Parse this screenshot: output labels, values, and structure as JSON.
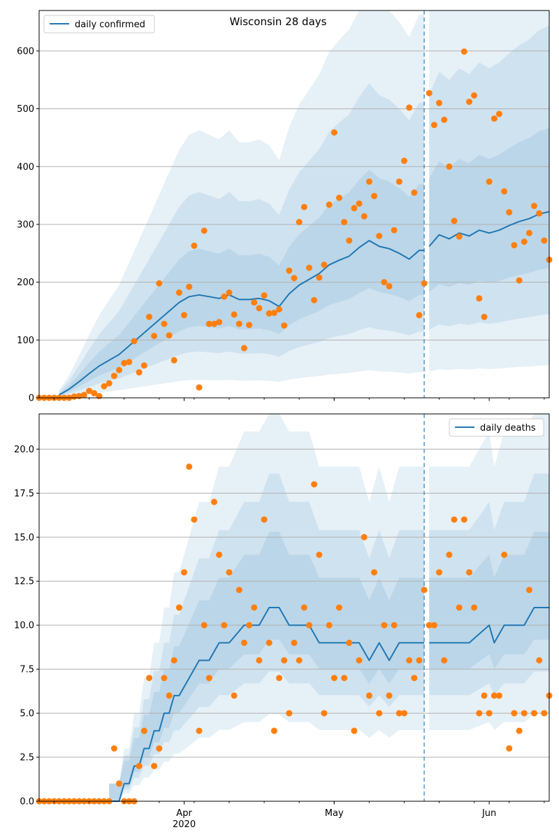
{
  "chart_data": [
    {
      "type": "line",
      "title": "Wisconsin 28 days",
      "ylim": [
        0,
        670
      ],
      "yticks": [
        0,
        100,
        200,
        300,
        400,
        500,
        600
      ],
      "ytick_labels": [
        "0",
        "100",
        "200",
        "300",
        "400",
        "500",
        "600"
      ],
      "grid": "horizontal",
      "legend": {
        "position": "top-left",
        "label": "daily confirmed"
      },
      "xlim": [
        "2020-03-03",
        "2020-06-13"
      ],
      "xticks": [
        {
          "date": "2020-04-01",
          "label": "Apr",
          "sublabel": "2020"
        },
        {
          "date": "2020-05-01",
          "label": "May",
          "sublabel": ""
        },
        {
          "date": "2020-06-01",
          "label": "Jun",
          "sublabel": ""
        }
      ],
      "vline_date": "2020-05-19",
      "colors": {
        "line": "#1f77b4",
        "points": "#ff7f0e",
        "band": "#1f77b4",
        "vline": "#1f77b4"
      },
      "forecast_start": "2020-05-20",
      "series": [
        {
          "name": "daily confirmed",
          "kind": "line",
          "x": [
            "2020-03-07",
            "2020-03-09",
            "2020-03-11",
            "2020-03-13",
            "2020-03-15",
            "2020-03-17",
            "2020-03-19",
            "2020-03-21",
            "2020-03-23",
            "2020-03-25",
            "2020-03-27",
            "2020-03-29",
            "2020-03-31",
            "2020-04-02",
            "2020-04-04",
            "2020-04-06",
            "2020-04-08",
            "2020-04-10",
            "2020-04-12",
            "2020-04-14",
            "2020-04-16",
            "2020-04-18",
            "2020-04-20",
            "2020-04-22",
            "2020-04-24",
            "2020-04-26",
            "2020-04-28",
            "2020-04-30",
            "2020-05-02",
            "2020-05-04",
            "2020-05-06",
            "2020-05-08",
            "2020-05-10",
            "2020-05-12",
            "2020-05-14",
            "2020-05-16",
            "2020-05-18",
            "2020-05-19"
          ],
          "y": [
            5,
            15,
            28,
            42,
            55,
            65,
            75,
            90,
            105,
            120,
            135,
            150,
            165,
            175,
            178,
            175,
            172,
            178,
            170,
            170,
            172,
            168,
            158,
            180,
            195,
            205,
            215,
            230,
            238,
            245,
            260,
            272,
            262,
            258,
            250,
            240,
            255,
            255
          ]
        },
        {
          "name": "forecast",
          "kind": "line",
          "x": [
            "2020-05-20",
            "2020-05-22",
            "2020-05-24",
            "2020-05-26",
            "2020-05-28",
            "2020-05-30",
            "2020-06-01",
            "2020-06-03",
            "2020-06-05",
            "2020-06-07",
            "2020-06-09",
            "2020-06-11",
            "2020-06-13"
          ],
          "y": [
            262,
            282,
            275,
            285,
            280,
            290,
            285,
            290,
            298,
            305,
            310,
            318,
            322
          ]
        },
        {
          "name": "observed",
          "kind": "scatter",
          "x": [
            "2020-03-03",
            "2020-03-04",
            "2020-03-05",
            "2020-03-06",
            "2020-03-07",
            "2020-03-08",
            "2020-03-09",
            "2020-03-10",
            "2020-03-11",
            "2020-03-12",
            "2020-03-13",
            "2020-03-14",
            "2020-03-15",
            "2020-03-16",
            "2020-03-17",
            "2020-03-18",
            "2020-03-19",
            "2020-03-20",
            "2020-03-21",
            "2020-03-22",
            "2020-03-23",
            "2020-03-24",
            "2020-03-25",
            "2020-03-26",
            "2020-03-27",
            "2020-03-28",
            "2020-03-29",
            "2020-03-30",
            "2020-03-31",
            "2020-04-01",
            "2020-04-02",
            "2020-04-03",
            "2020-04-04",
            "2020-04-05",
            "2020-04-06",
            "2020-04-07",
            "2020-04-08",
            "2020-04-09",
            "2020-04-10",
            "2020-04-11",
            "2020-04-12",
            "2020-04-13",
            "2020-04-14",
            "2020-04-15",
            "2020-04-16",
            "2020-04-17",
            "2020-04-18",
            "2020-04-19",
            "2020-04-20",
            "2020-04-21",
            "2020-04-22",
            "2020-04-23",
            "2020-04-24",
            "2020-04-25",
            "2020-04-26",
            "2020-04-27",
            "2020-04-28",
            "2020-04-29",
            "2020-04-30",
            "2020-05-01",
            "2020-05-02",
            "2020-05-03",
            "2020-05-04",
            "2020-05-05",
            "2020-05-06",
            "2020-05-07",
            "2020-05-08",
            "2020-05-09",
            "2020-05-10",
            "2020-05-11",
            "2020-05-12",
            "2020-05-13",
            "2020-05-14",
            "2020-05-15",
            "2020-05-16",
            "2020-05-17",
            "2020-05-18",
            "2020-05-19",
            "2020-05-20",
            "2020-05-21",
            "2020-05-22",
            "2020-05-23",
            "2020-05-24",
            "2020-05-25",
            "2020-05-26",
            "2020-05-27",
            "2020-05-28",
            "2020-05-29",
            "2020-05-30",
            "2020-05-31",
            "2020-06-01",
            "2020-06-02",
            "2020-06-03",
            "2020-06-04",
            "2020-06-05",
            "2020-06-06",
            "2020-06-07",
            "2020-06-08",
            "2020-06-09",
            "2020-06-10",
            "2020-06-11",
            "2020-06-12",
            "2020-06-13"
          ],
          "y": [
            0,
            0,
            0,
            0,
            0,
            0,
            0,
            2,
            3,
            5,
            12,
            8,
            3,
            20,
            25,
            38,
            48,
            60,
            62,
            98,
            44,
            56,
            140,
            107,
            198,
            128,
            108,
            65,
            182,
            143,
            192,
            263,
            18,
            289,
            128,
            128,
            131,
            175,
            182,
            144,
            128,
            86,
            126,
            165,
            155,
            177,
            146,
            147,
            153,
            125,
            220,
            207,
            304,
            330,
            225,
            169,
            208,
            230,
            334,
            459,
            346,
            304,
            272,
            328,
            336,
            314,
            374,
            349,
            280,
            200,
            193,
            290,
            374,
            410,
            502,
            355,
            143,
            198,
            527,
            472,
            510,
            481,
            400,
            306,
            279,
            599,
            512,
            523,
            172,
            140,
            374,
            483,
            491,
            357,
            321,
            264,
            203,
            270,
            285,
            332,
            319,
            272,
            239
          ]
        }
      ]
    },
    {
      "type": "line",
      "title": "",
      "ylim": [
        0,
        22
      ],
      "yticks": [
        0,
        2.5,
        5,
        7.5,
        10,
        12.5,
        15,
        17.5,
        20
      ],
      "ytick_labels": [
        "0.0",
        "2.5",
        "5.0",
        "7.5",
        "10.0",
        "12.5",
        "15.0",
        "17.5",
        "20.0"
      ],
      "grid": "horizontal",
      "legend": {
        "position": "top-right",
        "label": "daily deaths"
      },
      "xlim": [
        "2020-03-03",
        "2020-06-13"
      ],
      "xticks": [
        {
          "date": "2020-04-01",
          "label": "Apr",
          "sublabel": "2020"
        },
        {
          "date": "2020-05-01",
          "label": "May",
          "sublabel": ""
        },
        {
          "date": "2020-06-01",
          "label": "Jun",
          "sublabel": ""
        }
      ],
      "vline_date": "2020-05-19",
      "colors": {
        "line": "#1f77b4",
        "points": "#ff7f0e",
        "band": "#1f77b4",
        "vline": "#1f77b4"
      },
      "forecast_start": "2020-05-20",
      "series": [
        {
          "name": "daily deaths",
          "kind": "line",
          "x": [
            "2020-03-17",
            "2020-03-18",
            "2020-03-19",
            "2020-03-20",
            "2020-03-21",
            "2020-03-22",
            "2020-03-23",
            "2020-03-24",
            "2020-03-25",
            "2020-03-26",
            "2020-03-27",
            "2020-03-28",
            "2020-03-29",
            "2020-03-30",
            "2020-03-31",
            "2020-04-02",
            "2020-04-04",
            "2020-04-06",
            "2020-04-08",
            "2020-04-10",
            "2020-04-13",
            "2020-04-16",
            "2020-04-18",
            "2020-04-20",
            "2020-04-22",
            "2020-04-24",
            "2020-04-26",
            "2020-04-28",
            "2020-04-30",
            "2020-05-02",
            "2020-05-04",
            "2020-05-06",
            "2020-05-08",
            "2020-05-10",
            "2020-05-12",
            "2020-05-14",
            "2020-05-16",
            "2020-05-18",
            "2020-05-19"
          ],
          "y": [
            0,
            0,
            0,
            1,
            1,
            2,
            2,
            3,
            3,
            4,
            4,
            5,
            5,
            6,
            6,
            7,
            8,
            8,
            9,
            9,
            10,
            10,
            11,
            11,
            10,
            10,
            10,
            9,
            9,
            9,
            9,
            9,
            8,
            9,
            8,
            9,
            9,
            9,
            9
          ]
        },
        {
          "name": "forecast",
          "kind": "line",
          "x": [
            "2020-05-20",
            "2020-05-22",
            "2020-05-24",
            "2020-05-26",
            "2020-05-28",
            "2020-05-30",
            "2020-06-01",
            "2020-06-02",
            "2020-06-04",
            "2020-06-06",
            "2020-06-08",
            "2020-06-10",
            "2020-06-13"
          ],
          "y": [
            9,
            9,
            9,
            9,
            9,
            9.5,
            10,
            9,
            10,
            10,
            10,
            11,
            11
          ]
        },
        {
          "name": "observed",
          "kind": "scatter",
          "x": [
            "2020-03-03",
            "2020-03-04",
            "2020-03-05",
            "2020-03-06",
            "2020-03-07",
            "2020-03-08",
            "2020-03-09",
            "2020-03-10",
            "2020-03-11",
            "2020-03-12",
            "2020-03-13",
            "2020-03-14",
            "2020-03-15",
            "2020-03-16",
            "2020-03-17",
            "2020-03-18",
            "2020-03-19",
            "2020-03-20",
            "2020-03-21",
            "2020-03-22",
            "2020-03-23",
            "2020-03-24",
            "2020-03-25",
            "2020-03-26",
            "2020-03-27",
            "2020-03-28",
            "2020-03-29",
            "2020-03-30",
            "2020-03-31",
            "2020-04-01",
            "2020-04-02",
            "2020-04-03",
            "2020-04-04",
            "2020-04-05",
            "2020-04-06",
            "2020-04-07",
            "2020-04-08",
            "2020-04-09",
            "2020-04-10",
            "2020-04-11",
            "2020-04-12",
            "2020-04-13",
            "2020-04-14",
            "2020-04-15",
            "2020-04-16",
            "2020-04-17",
            "2020-04-18",
            "2020-04-19",
            "2020-04-20",
            "2020-04-21",
            "2020-04-22",
            "2020-04-23",
            "2020-04-24",
            "2020-04-25",
            "2020-04-26",
            "2020-04-27",
            "2020-04-28",
            "2020-04-29",
            "2020-04-30",
            "2020-05-01",
            "2020-05-02",
            "2020-05-03",
            "2020-05-04",
            "2020-05-05",
            "2020-05-06",
            "2020-05-07",
            "2020-05-08",
            "2020-05-09",
            "2020-05-10",
            "2020-05-11",
            "2020-05-12",
            "2020-05-13",
            "2020-05-14",
            "2020-05-15",
            "2020-05-16",
            "2020-05-17",
            "2020-05-18",
            "2020-05-19",
            "2020-05-20",
            "2020-05-21",
            "2020-05-22",
            "2020-05-23",
            "2020-05-24",
            "2020-05-25",
            "2020-05-26",
            "2020-05-27",
            "2020-05-28",
            "2020-05-29",
            "2020-05-30",
            "2020-05-31",
            "2020-06-01",
            "2020-06-02",
            "2020-06-03",
            "2020-06-04",
            "2020-06-05",
            "2020-06-06",
            "2020-06-07",
            "2020-06-08",
            "2020-06-09",
            "2020-06-10",
            "2020-06-11",
            "2020-06-12",
            "2020-06-13"
          ],
          "y": [
            0,
            0,
            0,
            0,
            0,
            0,
            0,
            0,
            0,
            0,
            0,
            0,
            0,
            0,
            0,
            3,
            1,
            0,
            0,
            0,
            2,
            4,
            7,
            2,
            3,
            7,
            6,
            8,
            11,
            13,
            19,
            16,
            4,
            10,
            7,
            17,
            14,
            10,
            13,
            6,
            12,
            9,
            10,
            11,
            8,
            16,
            9,
            4,
            7,
            8,
            5,
            9,
            8,
            11,
            10,
            18,
            14,
            5,
            10,
            7,
            11,
            7,
            9,
            4,
            8,
            15,
            6,
            13,
            5,
            10,
            6,
            10,
            5,
            5,
            8,
            7,
            8,
            12,
            10,
            10,
            13,
            8,
            14,
            16,
            11,
            16,
            13,
            11,
            5,
            6,
            5,
            6,
            6,
            14,
            3,
            5,
            4,
            5,
            12,
            5,
            8,
            5,
            6
          ]
        }
      ]
    }
  ]
}
